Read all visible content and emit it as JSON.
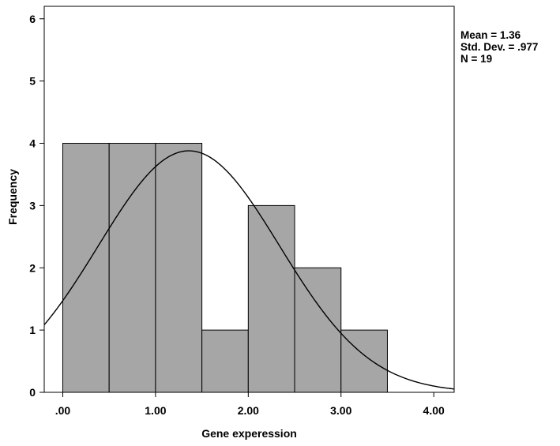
{
  "chart_data": {
    "type": "bar",
    "subtype": "histogram",
    "xlabel": "Gene experession",
    "ylabel": "Frequency",
    "bins": [
      {
        "start": 0.0,
        "end": 0.5,
        "count": 4
      },
      {
        "start": 0.5,
        "end": 1.0,
        "count": 4
      },
      {
        "start": 1.0,
        "end": 1.5,
        "count": 4
      },
      {
        "start": 1.5,
        "end": 2.0,
        "count": 1
      },
      {
        "start": 2.0,
        "end": 2.5,
        "count": 3
      },
      {
        "start": 2.5,
        "end": 3.0,
        "count": 2
      },
      {
        "start": 3.0,
        "end": 3.5,
        "count": 1
      }
    ],
    "xlim": [
      -0.2,
      4.22
    ],
    "ylim": [
      0,
      6.2
    ],
    "xticks": [
      0,
      1,
      2,
      3,
      4
    ],
    "xtick_labels": [
      ".00",
      "1.00",
      "2.00",
      "3.00",
      "4.00"
    ],
    "yticks": [
      0,
      1,
      2,
      3,
      4,
      5,
      6
    ],
    "ytick_labels": [
      "0",
      "1",
      "2",
      "3",
      "4",
      "5",
      "6"
    ],
    "normal_curve": {
      "mean": 1.36,
      "sd": 0.977,
      "n": 19,
      "bin_width": 0.5
    },
    "bar_color": "#a6a6a6",
    "grid": false,
    "stats_text": [
      "Mean = 1.36",
      "Std. Dev. = .977",
      "N = 19"
    ]
  }
}
